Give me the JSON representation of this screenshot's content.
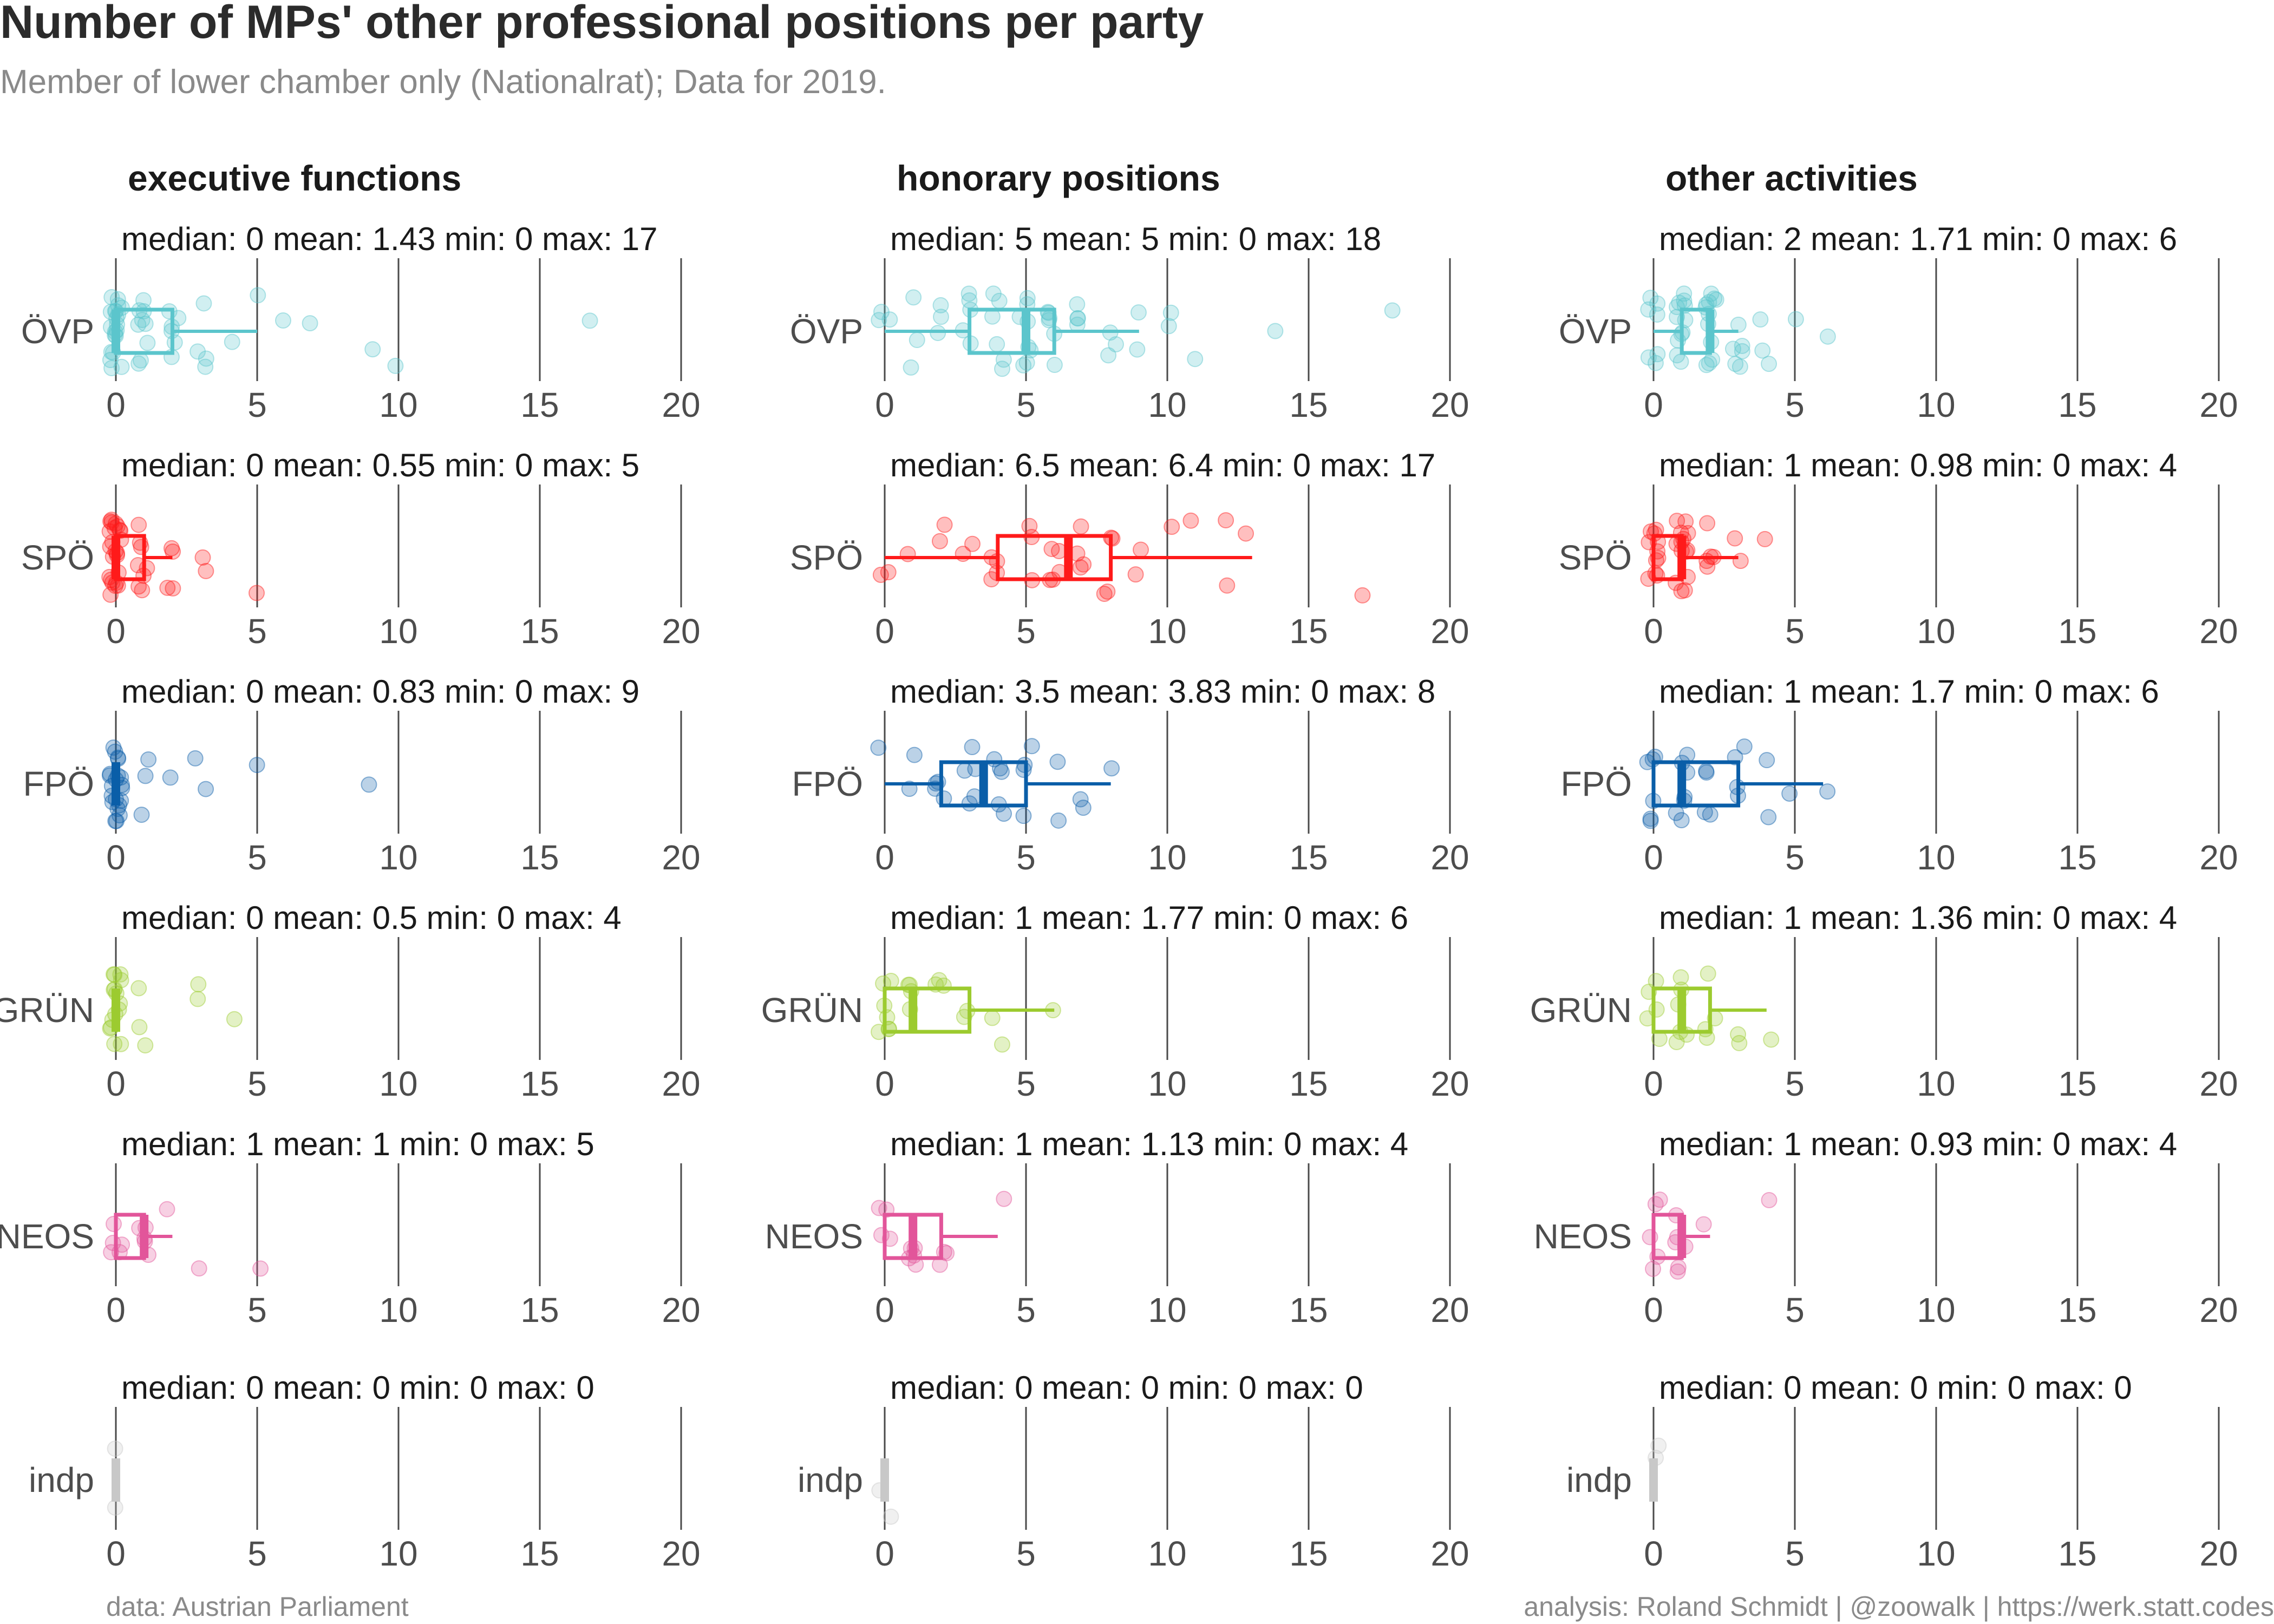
{
  "title": "Number of MPs' other professional positions per party",
  "subtitle": "Member of lower chamber only (Nationalrat); Data for 2019.",
  "caption_left": "data: Austrian Parliament",
  "caption_right": "analysis: Roland Schmidt | @zoowalk | https://werk.statt.codes",
  "colors": {
    "ÖVP": "#5bc5cc",
    "SPÖ": "#ff1a1a",
    "FPÖ": "#0a5ea8",
    "GRÜN": "#9ccb2f",
    "NEOS": "#e2559a",
    "indp": "#c8c8c8"
  },
  "chart_data": {
    "type": "boxplot",
    "orientation": "horizontal",
    "xlim": [
      0,
      20
    ],
    "x_ticks": [
      0,
      5,
      10,
      15,
      20
    ],
    "grid": true,
    "parties": [
      "ÖVP",
      "SPÖ",
      "FPÖ",
      "GRÜN",
      "NEOS",
      "indp"
    ],
    "columns": [
      {
        "title": "executive functions",
        "rows": [
          {
            "party": "ÖVP",
            "label": "median: 0 mean: 1.43 min: 0 max: 17",
            "box": {
              "q1": 0,
              "median": 0,
              "q3": 2,
              "whisker_low": 0,
              "whisker_high": 5
            },
            "points": [
              0,
              0,
              0,
              0,
              0,
              0,
              0,
              0,
              0,
              0,
              0,
              0,
              0,
              0,
              0,
              0,
              0,
              0,
              0,
              0,
              1,
              1,
              1,
              1,
              1,
              1,
              1,
              1,
              1,
              2,
              2,
              2,
              2,
              2,
              2,
              3,
              3,
              3,
              3,
              4,
              5,
              6,
              7,
              9,
              10,
              17
            ]
          },
          {
            "party": "SPÖ",
            "label": "median: 0 mean: 0.55 min: 0 max: 5",
            "box": {
              "q1": 0,
              "median": 0,
              "q3": 1,
              "whisker_low": 0,
              "whisker_high": 2
            },
            "points": [
              0,
              0,
              0,
              0,
              0,
              0,
              0,
              0,
              0,
              0,
              0,
              0,
              0,
              0,
              0,
              0,
              0,
              0,
              0,
              0,
              0,
              0,
              0,
              0,
              1,
              1,
              1,
              1,
              1,
              1,
              1,
              1,
              2,
              2,
              2,
              2,
              3,
              3,
              5
            ]
          },
          {
            "party": "FPÖ",
            "label": "median: 0 mean: 0.83 min: 0 max: 9",
            "box": {
              "q1": 0,
              "median": 0,
              "q3": 0,
              "whisker_low": 0,
              "whisker_high": 0
            },
            "points": [
              0,
              0,
              0,
              0,
              0,
              0,
              0,
              0,
              0,
              0,
              0,
              0,
              0,
              0,
              0,
              0,
              0,
              0,
              0,
              0,
              0,
              1,
              1,
              1,
              2,
              3,
              3,
              5,
              9
            ]
          },
          {
            "party": "GRÜN",
            "label": "median: 0 mean: 0.5 min: 0 max: 4",
            "box": {
              "q1": 0,
              "median": 0,
              "q3": 0,
              "whisker_low": 0,
              "whisker_high": 0
            },
            "points": [
              0,
              0,
              0,
              0,
              0,
              0,
              0,
              0,
              0,
              0,
              0,
              0,
              0,
              0,
              0,
              1,
              1,
              1,
              3,
              3,
              4
            ]
          },
          {
            "party": "NEOS",
            "label": "median: 1 mean: 1 min: 0 max: 5",
            "box": {
              "q1": 0,
              "median": 1,
              "q3": 1,
              "whisker_low": 0,
              "whisker_high": 2
            },
            "points": [
              0,
              0,
              0,
              0,
              0,
              1,
              1,
              1,
              1,
              1,
              2,
              3,
              5
            ]
          },
          {
            "party": "indp",
            "label": "median: 0 mean: 0 min: 0 max: 0",
            "box": {
              "q1": 0,
              "median": 0,
              "q3": 0,
              "whisker_low": 0,
              "whisker_high": 0
            },
            "points": [
              0,
              0
            ]
          }
        ]
      },
      {
        "title": "honorary positions",
        "rows": [
          {
            "party": "ÖVP",
            "label": "median: 5 mean: 5 min: 0 max: 18",
            "box": {
              "q1": 3,
              "median": 5,
              "q3": 6,
              "whisker_low": 0,
              "whisker_high": 9
            },
            "points": [
              0,
              0,
              0,
              1,
              1,
              1,
              2,
              2,
              2,
              3,
              3,
              3,
              3,
              3,
              4,
              4,
              4,
              4,
              4,
              4,
              5,
              5,
              5,
              5,
              5,
              5,
              5,
              5,
              6,
              6,
              6,
              6,
              6,
              6,
              7,
              7,
              7,
              7,
              8,
              8,
              8,
              9,
              9,
              10,
              10,
              11,
              14,
              18
            ]
          },
          {
            "party": "SPÖ",
            "label": "median: 6.5 mean: 6.4 min: 0 max: 17",
            "box": {
              "q1": 4,
              "median": 6.5,
              "q3": 8,
              "whisker_low": 0,
              "whisker_high": 13
            },
            "points": [
              0,
              0,
              1,
              2,
              2,
              3,
              3,
              4,
              4,
              4,
              4,
              5,
              5,
              5,
              6,
              6,
              6,
              6,
              6,
              7,
              7,
              7,
              7,
              8,
              8,
              8,
              8,
              9,
              9,
              10,
              11,
              12,
              12,
              13,
              17
            ]
          },
          {
            "party": "FPÖ",
            "label": "median: 3.5 mean: 3.83 min: 0 max: 8",
            "box": {
              "q1": 2,
              "median": 3.5,
              "q3": 5,
              "whisker_low": 0,
              "whisker_high": 8
            },
            "points": [
              0,
              1,
              1,
              2,
              2,
              2,
              2,
              3,
              3,
              3,
              3,
              3,
              4,
              4,
              4,
              4,
              4,
              5,
              5,
              5,
              5,
              6,
              6,
              7,
              7,
              8
            ]
          },
          {
            "party": "GRÜN",
            "label": "median: 1 mean: 1.77 min: 0 max: 6",
            "box": {
              "q1": 0,
              "median": 1,
              "q3": 3,
              "whisker_low": 0,
              "whisker_high": 6
            },
            "points": [
              0,
              0,
              0,
              0,
              0,
              0,
              0,
              1,
              1,
              1,
              1,
              2,
              2,
              2,
              3,
              3,
              4,
              4,
              6
            ]
          },
          {
            "party": "NEOS",
            "label": "median: 1 mean: 1.13 min: 0 max: 4",
            "box": {
              "q1": 0,
              "median": 1,
              "q3": 2,
              "whisker_low": 0,
              "whisker_high": 4
            },
            "points": [
              0,
              0,
              0,
              0,
              1,
              1,
              1,
              1,
              1,
              2,
              2,
              2,
              4
            ]
          },
          {
            "party": "indp",
            "label": "median: 0 mean: 0 min: 0 max: 0",
            "box": {
              "q1": 0,
              "median": 0,
              "q3": 0,
              "whisker_low": 0,
              "whisker_high": 0
            },
            "points": [
              0,
              0
            ]
          }
        ]
      },
      {
        "title": "other activities",
        "rows": [
          {
            "party": "ÖVP",
            "label": "median: 2 mean: 1.71 min: 0 max: 6",
            "box": {
              "q1": 1,
              "median": 2,
              "q3": 2,
              "whisker_low": 0,
              "whisker_high": 3
            },
            "points": [
              0,
              0,
              0,
              0,
              0,
              0,
              0,
              1,
              1,
              1,
              1,
              1,
              1,
              1,
              1,
              1,
              1,
              1,
              1,
              2,
              2,
              2,
              2,
              2,
              2,
              2,
              2,
              2,
              2,
              2,
              2,
              3,
              3,
              3,
              3,
              3,
              3,
              4,
              4,
              4,
              5,
              6
            ]
          },
          {
            "party": "SPÖ",
            "label": "median: 1 mean: 0.98 min: 0 max: 4",
            "box": {
              "q1": 0,
              "median": 1,
              "q3": 1,
              "whisker_low": 0,
              "whisker_high": 3
            },
            "points": [
              0,
              0,
              0,
              0,
              0,
              0,
              0,
              0,
              0,
              0,
              0,
              1,
              1,
              1,
              1,
              1,
              1,
              1,
              1,
              1,
              1,
              1,
              1,
              1,
              1,
              2,
              2,
              2,
              2,
              2,
              3,
              3,
              4
            ]
          },
          {
            "party": "FPÖ",
            "label": "median: 1 mean: 1.7 min: 0 max: 6",
            "box": {
              "q1": 0,
              "median": 1,
              "q3": 3,
              "whisker_low": 0,
              "whisker_high": 6
            },
            "points": [
              0,
              0,
              0,
              0,
              0,
              0,
              1,
              1,
              1,
              1,
              1,
              1,
              1,
              2,
              2,
              2,
              2,
              3,
              3,
              3,
              3,
              4,
              4,
              5,
              6
            ]
          },
          {
            "party": "GRÜN",
            "label": "median: 1 mean: 1.36 min: 0 max: 4",
            "box": {
              "q1": 0,
              "median": 1,
              "q3": 2,
              "whisker_low": 0,
              "whisker_high": 4
            },
            "points": [
              0,
              0,
              0,
              0,
              0,
              1,
              1,
              1,
              1,
              1,
              1,
              2,
              2,
              2,
              2,
              3,
              3,
              4
            ]
          },
          {
            "party": "NEOS",
            "label": "median: 1 mean: 0.93 min: 0 max: 4",
            "box": {
              "q1": 0,
              "median": 1,
              "q3": 1,
              "whisker_low": 0,
              "whisker_high": 2
            },
            "points": [
              0,
              0,
              0,
              0,
              0,
              1,
              1,
              1,
              1,
              1,
              1,
              2,
              4
            ]
          },
          {
            "party": "indp",
            "label": "median: 0 mean: 0 min: 0 max: 0",
            "box": {
              "q1": 0,
              "median": 0,
              "q3": 0,
              "whisker_low": 0,
              "whisker_high": 0
            },
            "points": [
              0,
              0
            ]
          }
        ]
      }
    ]
  }
}
